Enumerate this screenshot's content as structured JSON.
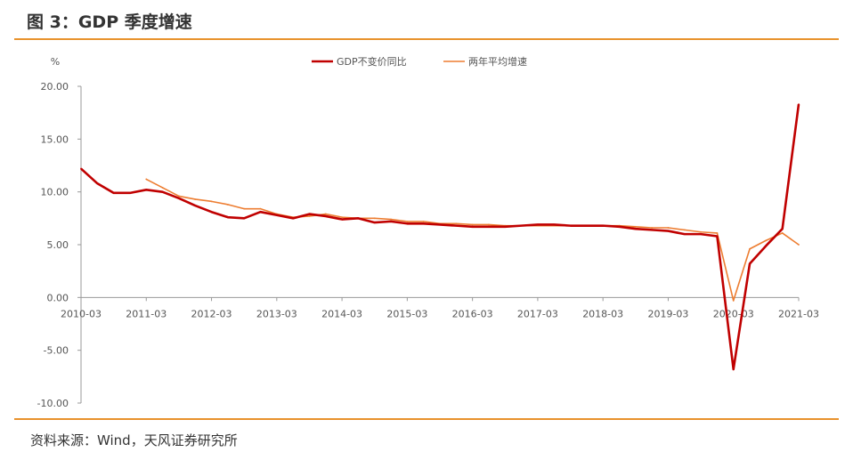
{
  "figure_title": "图 3：GDP 季度增速",
  "source_note": "资料来源：Wind，天风证券研究所",
  "colors": {
    "accent": "#e8922c",
    "series1": "#c00000",
    "series2": "#ed7d31"
  },
  "chart_data": {
    "type": "line",
    "title": "",
    "xlabel": "",
    "ylabel": "%",
    "ylim": [
      -10,
      20
    ],
    "yticks": [
      20,
      15,
      10,
      5,
      0,
      -5,
      -10
    ],
    "ytick_labels": [
      "20.00",
      "15.00",
      "10.00",
      "5.00",
      "0.00",
      "-5.00",
      "-10.00"
    ],
    "xticks": [
      "2010-03",
      "2011-03",
      "2012-03",
      "2013-03",
      "2014-03",
      "2015-03",
      "2016-03",
      "2017-03",
      "2018-03",
      "2019-03",
      "2020-03",
      "2021-03"
    ],
    "legend_position": "top-center",
    "x": [
      "2010-03",
      "2010-06",
      "2010-09",
      "2010-12",
      "2011-03",
      "2011-06",
      "2011-09",
      "2011-12",
      "2012-03",
      "2012-06",
      "2012-09",
      "2012-12",
      "2013-03",
      "2013-06",
      "2013-09",
      "2013-12",
      "2014-03",
      "2014-06",
      "2014-09",
      "2014-12",
      "2015-03",
      "2015-06",
      "2015-09",
      "2015-12",
      "2016-03",
      "2016-06",
      "2016-09",
      "2016-12",
      "2017-03",
      "2017-06",
      "2017-09",
      "2017-12",
      "2018-03",
      "2018-06",
      "2018-09",
      "2018-12",
      "2019-03",
      "2019-06",
      "2019-09",
      "2019-12",
      "2020-03",
      "2020-06",
      "2020-09",
      "2020-12",
      "2021-03"
    ],
    "series": [
      {
        "name": "GDP不变价同比",
        "values": [
          12.2,
          10.8,
          9.9,
          9.9,
          10.2,
          10.0,
          9.4,
          8.7,
          8.1,
          7.6,
          7.5,
          8.1,
          7.8,
          7.5,
          7.9,
          7.7,
          7.4,
          7.5,
          7.1,
          7.2,
          7.0,
          7.0,
          6.9,
          6.8,
          6.7,
          6.7,
          6.7,
          6.8,
          6.9,
          6.9,
          6.8,
          6.8,
          6.8,
          6.7,
          6.5,
          6.4,
          6.3,
          6.0,
          6.0,
          5.8,
          -6.8,
          3.2,
          4.9,
          6.5,
          18.3
        ]
      },
      {
        "name": "两年平均增速",
        "values": [
          null,
          null,
          null,
          null,
          11.2,
          10.4,
          9.6,
          9.3,
          9.1,
          8.8,
          8.4,
          8.4,
          7.9,
          7.6,
          7.7,
          7.9,
          7.6,
          7.5,
          7.5,
          7.4,
          7.2,
          7.2,
          7.0,
          7.0,
          6.9,
          6.9,
          6.8,
          6.8,
          6.8,
          6.8,
          6.8,
          6.8,
          6.8,
          6.8,
          6.7,
          6.6,
          6.6,
          6.4,
          6.2,
          6.1,
          -0.3,
          4.6,
          5.4,
          6.1,
          5.0
        ]
      }
    ]
  }
}
